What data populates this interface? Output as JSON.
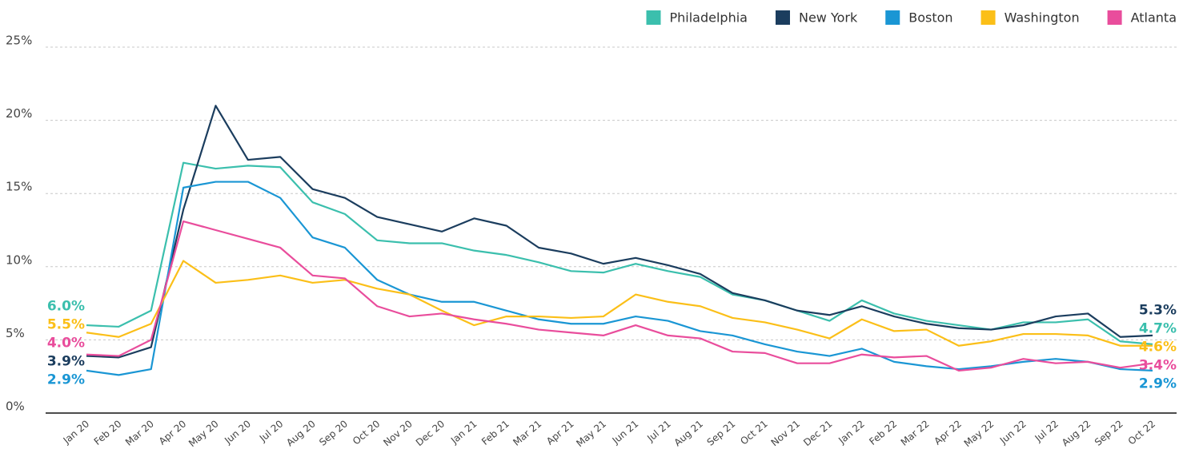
{
  "chart_data": {
    "type": "line",
    "categories": [
      "Jan 20",
      "Feb 20",
      "Mar 20",
      "Apr 20",
      "May 20",
      "Jun 20",
      "Jul 20",
      "Aug 20",
      "Sep 20",
      "Oct 20",
      "Nov 20",
      "Dec 20",
      "Jan 21",
      "Feb 21",
      "Mar 21",
      "Apr 21",
      "May 21",
      "Jun 21",
      "Jul 21",
      "Aug 21",
      "Sep 21",
      "Oct 21",
      "Nov 21",
      "Dec 21",
      "Jan 22",
      "Feb 22",
      "Mar 22",
      "Apr 22",
      "May 22",
      "Jun 22",
      "Jul 22",
      "Aug 22",
      "Sep 22",
      "Oct 22"
    ],
    "series": [
      {
        "name": "Philadelphia",
        "color": "#3bbfad",
        "values": [
          6.0,
          5.9,
          7.0,
          17.1,
          16.7,
          16.9,
          16.8,
          14.4,
          13.6,
          11.8,
          11.6,
          11.6,
          11.1,
          10.8,
          10.3,
          9.7,
          9.6,
          10.2,
          9.7,
          9.3,
          8.1,
          7.7,
          7.0,
          6.3,
          7.7,
          6.8,
          6.3,
          6.0,
          5.7,
          6.2,
          6.2,
          6.4,
          4.9,
          4.7
        ],
        "value_labels": [
          "6.0%",
          null,
          null,
          null,
          null,
          null,
          null,
          null,
          null,
          null,
          null,
          null,
          null,
          null,
          null,
          null,
          null,
          null,
          null,
          null,
          null,
          null,
          null,
          null,
          null,
          null,
          null,
          null,
          null,
          null,
          null,
          null,
          null,
          "4.7%"
        ]
      },
      {
        "name": "New York",
        "color": "#1b3d5e",
        "values": [
          3.9,
          3.8,
          4.5,
          13.9,
          21.0,
          17.3,
          17.5,
          15.3,
          14.7,
          13.4,
          12.9,
          12.4,
          13.3,
          12.8,
          11.3,
          10.9,
          10.2,
          10.6,
          10.1,
          9.5,
          8.2,
          7.7,
          7.0,
          6.7,
          7.3,
          6.6,
          6.1,
          5.8,
          5.7,
          6.0,
          6.6,
          6.8,
          5.2,
          5.3
        ],
        "value_labels": [
          "3.9%",
          null,
          null,
          null,
          null,
          null,
          null,
          null,
          null,
          null,
          null,
          null,
          null,
          null,
          null,
          null,
          null,
          null,
          null,
          null,
          null,
          null,
          null,
          null,
          null,
          null,
          null,
          null,
          null,
          null,
          null,
          null,
          null,
          "5.3%"
        ]
      },
      {
        "name": "Boston",
        "color": "#1a96d4",
        "values": [
          2.9,
          2.6,
          3.0,
          15.4,
          15.8,
          15.8,
          14.7,
          12.0,
          11.3,
          9.1,
          8.1,
          7.6,
          7.6,
          7.0,
          6.4,
          6.1,
          6.1,
          6.6,
          6.3,
          5.6,
          5.3,
          4.7,
          4.2,
          3.9,
          4.4,
          3.5,
          3.2,
          3.0,
          3.2,
          3.5,
          3.7,
          3.5,
          3.0,
          2.9
        ],
        "value_labels": [
          "2.9%",
          null,
          null,
          null,
          null,
          null,
          null,
          null,
          null,
          null,
          null,
          null,
          null,
          null,
          null,
          null,
          null,
          null,
          null,
          null,
          null,
          null,
          null,
          null,
          null,
          null,
          null,
          null,
          null,
          null,
          null,
          null,
          null,
          "2.9%"
        ]
      },
      {
        "name": "Washington",
        "color": "#fbbf18",
        "values": [
          5.5,
          5.2,
          6.1,
          10.4,
          8.9,
          9.1,
          9.4,
          8.9,
          9.1,
          8.5,
          8.1,
          7.0,
          6.0,
          6.6,
          6.6,
          6.5,
          6.6,
          8.1,
          7.6,
          7.3,
          6.5,
          6.2,
          5.7,
          5.1,
          6.4,
          5.6,
          5.7,
          4.6,
          4.9,
          5.4,
          5.4,
          5.3,
          4.6,
          4.6
        ],
        "value_labels": [
          "5.5%",
          null,
          null,
          null,
          null,
          null,
          null,
          null,
          null,
          null,
          null,
          null,
          null,
          null,
          null,
          null,
          null,
          null,
          null,
          null,
          null,
          null,
          null,
          null,
          null,
          null,
          null,
          null,
          null,
          null,
          null,
          null,
          null,
          "4.6%"
        ]
      },
      {
        "name": "Atlanta",
        "color": "#e94d9c",
        "values": [
          4.0,
          3.9,
          5.0,
          13.1,
          12.5,
          11.9,
          11.3,
          9.4,
          9.2,
          7.3,
          6.6,
          6.8,
          6.4,
          6.1,
          5.7,
          5.5,
          5.3,
          6.0,
          5.3,
          5.1,
          4.2,
          4.1,
          3.4,
          3.4,
          4.0,
          3.8,
          3.9,
          2.9,
          3.1,
          3.7,
          3.4,
          3.5,
          3.1,
          3.4
        ],
        "value_labels": [
          "4.0%",
          null,
          null,
          null,
          null,
          null,
          null,
          null,
          null,
          null,
          null,
          null,
          null,
          null,
          null,
          null,
          null,
          null,
          null,
          null,
          null,
          null,
          null,
          null,
          null,
          null,
          null,
          null,
          null,
          null,
          null,
          null,
          null,
          "3.4%"
        ]
      }
    ],
    "ylim": [
      0,
      25
    ],
    "yticks": [
      {
        "value": 0,
        "label": "0%"
      },
      {
        "value": 5,
        "label": "5%"
      },
      {
        "value": 10,
        "label": "10%"
      },
      {
        "value": 15,
        "label": "15%"
      },
      {
        "value": 20,
        "label": "20%"
      },
      {
        "value": 25,
        "label": "25%"
      }
    ],
    "grid": true,
    "legend": "top-right"
  }
}
